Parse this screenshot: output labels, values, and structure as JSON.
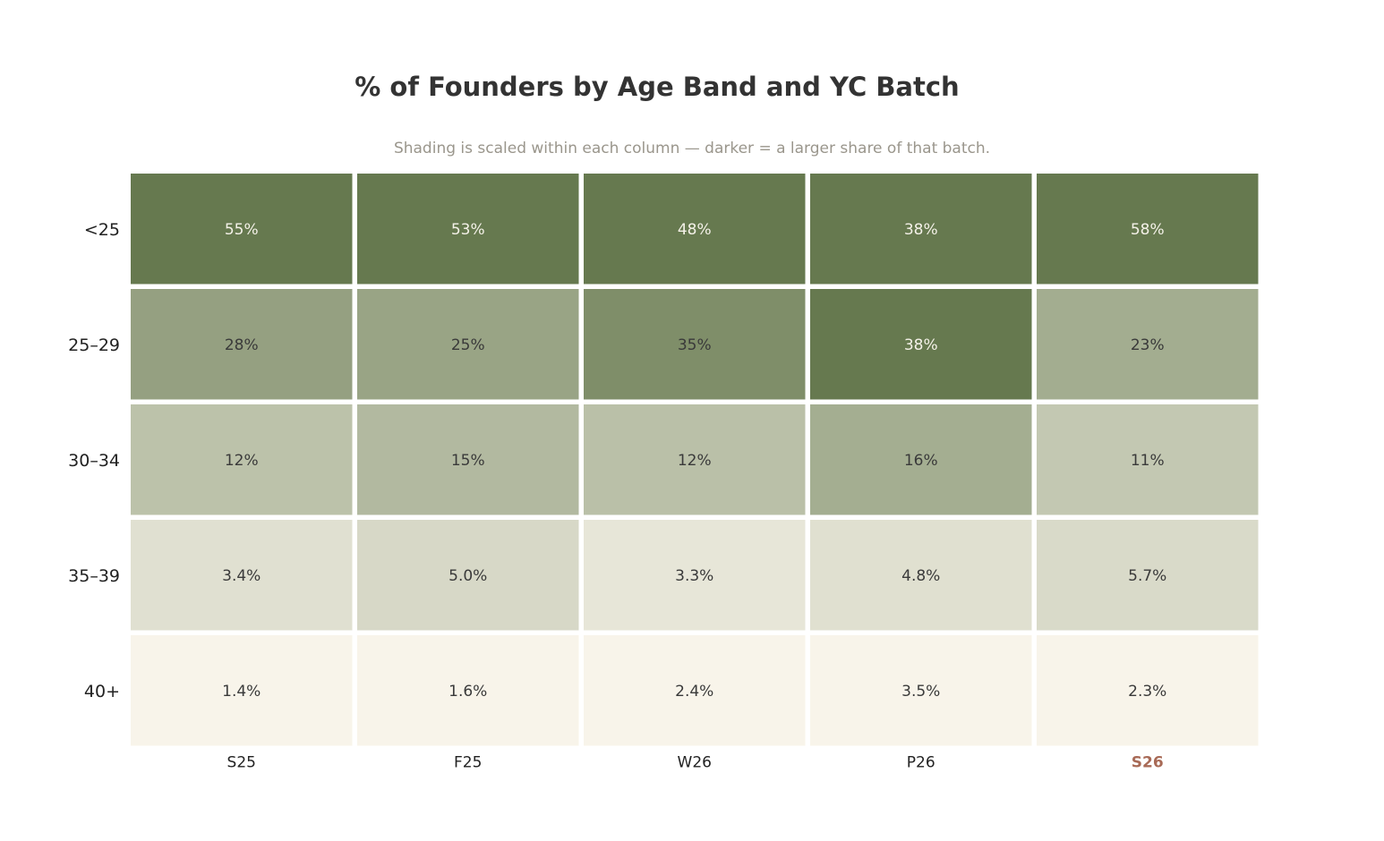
{
  "chart_data": {
    "type": "heatmap",
    "title": "% of Founders by Age Band and YC Batch",
    "subtitle": "Shading is scaled within each column — darker = a larger share of that batch.",
    "rows": [
      "<25",
      "25–29",
      "30–34",
      "35–39",
      "40+"
    ],
    "columns": [
      "S25",
      "F25",
      "W26",
      "P26",
      "S26"
    ],
    "highlight_column": "S26",
    "values": [
      [
        55,
        53,
        48,
        38,
        58
      ],
      [
        28,
        25,
        35,
        38,
        23
      ],
      [
        12,
        15,
        12,
        16,
        11
      ],
      [
        3.4,
        5.0,
        3.3,
        4.8,
        5.7
      ],
      [
        1.4,
        1.6,
        2.4,
        3.5,
        2.3
      ]
    ],
    "labels": [
      [
        "55%",
        "53%",
        "48%",
        "38%",
        "58%"
      ],
      [
        "28%",
        "25%",
        "35%",
        "38%",
        "23%"
      ],
      [
        "12%",
        "15%",
        "12%",
        "16%",
        "11%"
      ],
      [
        "3.4%",
        "5.0%",
        "3.3%",
        "4.8%",
        "5.7%"
      ],
      [
        "1.4%",
        "1.6%",
        "2.4%",
        "3.5%",
        "2.3%"
      ]
    ],
    "color_scale": {
      "low": "#f8f4ea",
      "high": "#66794f"
    },
    "highlight_color": "#a86a56",
    "label_dark_color": "#3a3a3a",
    "label_light_color": "#f4f1e8",
    "axis_label_color": "#222222"
  }
}
